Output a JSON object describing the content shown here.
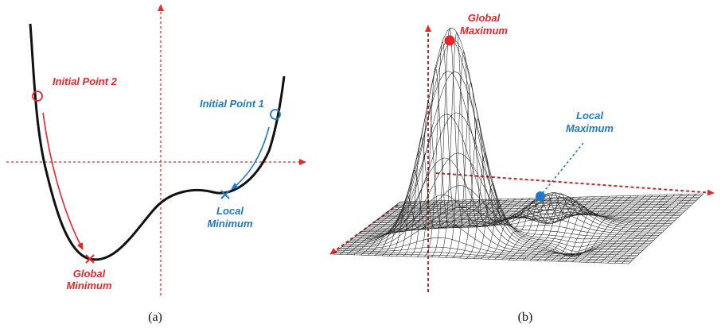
{
  "panel_a": {
    "caption": "(a)",
    "initial_point_1": "Initial Point 1",
    "initial_point_2": "Initial Point 2",
    "local_minimum": [
      "Local",
      "Minimum"
    ],
    "global_minimum": [
      "Global",
      "Minimum"
    ]
  },
  "panel_b": {
    "caption": "(b)",
    "global_maximum": [
      "Global",
      "Maximum"
    ],
    "local_maximum": [
      "Local",
      "Maximum"
    ]
  },
  "colors": {
    "red": "#e8262a",
    "blue": "#1f78c8",
    "curve": "#111111"
  }
}
